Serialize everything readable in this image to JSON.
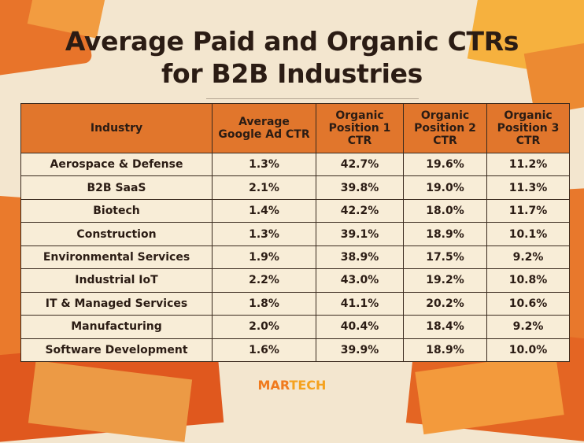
{
  "title_line1": "Average Paid and Organic CTRs",
  "title_line2": "for B2B Industries",
  "table": {
    "headers": [
      "Industry",
      "Average Google Ad CTR",
      "Organic Position 1 CTR",
      "Organic Position 2 CTR",
      "Organic Position 3 CTR"
    ],
    "rows": [
      [
        "Aerospace & Defense",
        "1.3%",
        "42.7%",
        "19.6%",
        "11.2%"
      ],
      [
        "B2B SaaS",
        "2.1%",
        "39.8%",
        "19.0%",
        "11.3%"
      ],
      [
        "Biotech",
        "1.4%",
        "42.2%",
        "18.0%",
        "11.7%"
      ],
      [
        "Construction",
        "1.3%",
        "39.1%",
        "18.9%",
        "10.1%"
      ],
      [
        "Environmental Services",
        "1.9%",
        "38.9%",
        "17.5%",
        "9.2%"
      ],
      [
        "Industrial IoT",
        "2.2%",
        "43.0%",
        "19.2%",
        "10.8%"
      ],
      [
        "IT & Managed Services",
        "1.8%",
        "41.1%",
        "20.2%",
        "10.6%"
      ],
      [
        "Manufacturing",
        "2.0%",
        "40.4%",
        "18.4%",
        "9.2%"
      ],
      [
        "Software Development",
        "1.6%",
        "39.9%",
        "18.9%",
        "10.0%"
      ]
    ]
  },
  "logo": {
    "part1": "MAR",
    "part2": "TECH"
  },
  "colors": {
    "header_bg": "#e1762c",
    "cell_bg": "#f8edd7",
    "page_bg": "#f3e6cf",
    "accent_orange": "#f07a1e"
  }
}
